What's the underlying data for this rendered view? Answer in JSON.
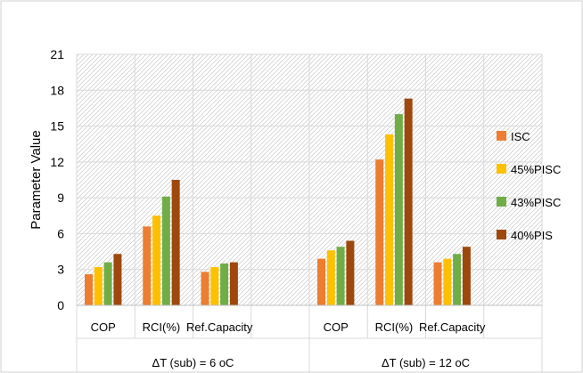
{
  "chart_data": {
    "type": "bar",
    "title": "",
    "xlabel": "",
    "ylabel": "Parameter Value",
    "ylim": [
      0,
      21
    ],
    "yticks": [
      0,
      3,
      6,
      9,
      12,
      15,
      18,
      21
    ],
    "grid": true,
    "legend_position": "right",
    "groups": [
      {
        "label": "ΔT (sub) = 6 oC",
        "categories": [
          "COP",
          "RCI(%)",
          "Ref.Capacity",
          ""
        ]
      },
      {
        "label": "ΔT (sub) = 12 oC",
        "categories": [
          "COP",
          "RCI(%)",
          "Ref.Capacity",
          ""
        ]
      }
    ],
    "categories": [
      "COP",
      "RCI(%)",
      "Ref.Capacity",
      "",
      "COP",
      "RCI(%)",
      "Ref.Capacity",
      ""
    ],
    "series": [
      {
        "name": "ISC",
        "color": "#ED7D31",
        "values": [
          2.6,
          6.6,
          2.8,
          null,
          3.9,
          12.2,
          3.6,
          null
        ]
      },
      {
        "name": "45%PISC",
        "color": "#FFC000",
        "values": [
          3.2,
          7.5,
          3.2,
          null,
          4.6,
          14.3,
          3.9,
          null
        ]
      },
      {
        "name": "43%PISC",
        "color": "#70AD47",
        "values": [
          3.6,
          9.1,
          3.5,
          null,
          4.9,
          16.0,
          4.3,
          null
        ]
      },
      {
        "name": "40%PIS",
        "color": "#9E480E",
        "values": [
          4.3,
          10.5,
          3.6,
          null,
          5.4,
          17.3,
          4.9,
          null
        ]
      }
    ]
  }
}
